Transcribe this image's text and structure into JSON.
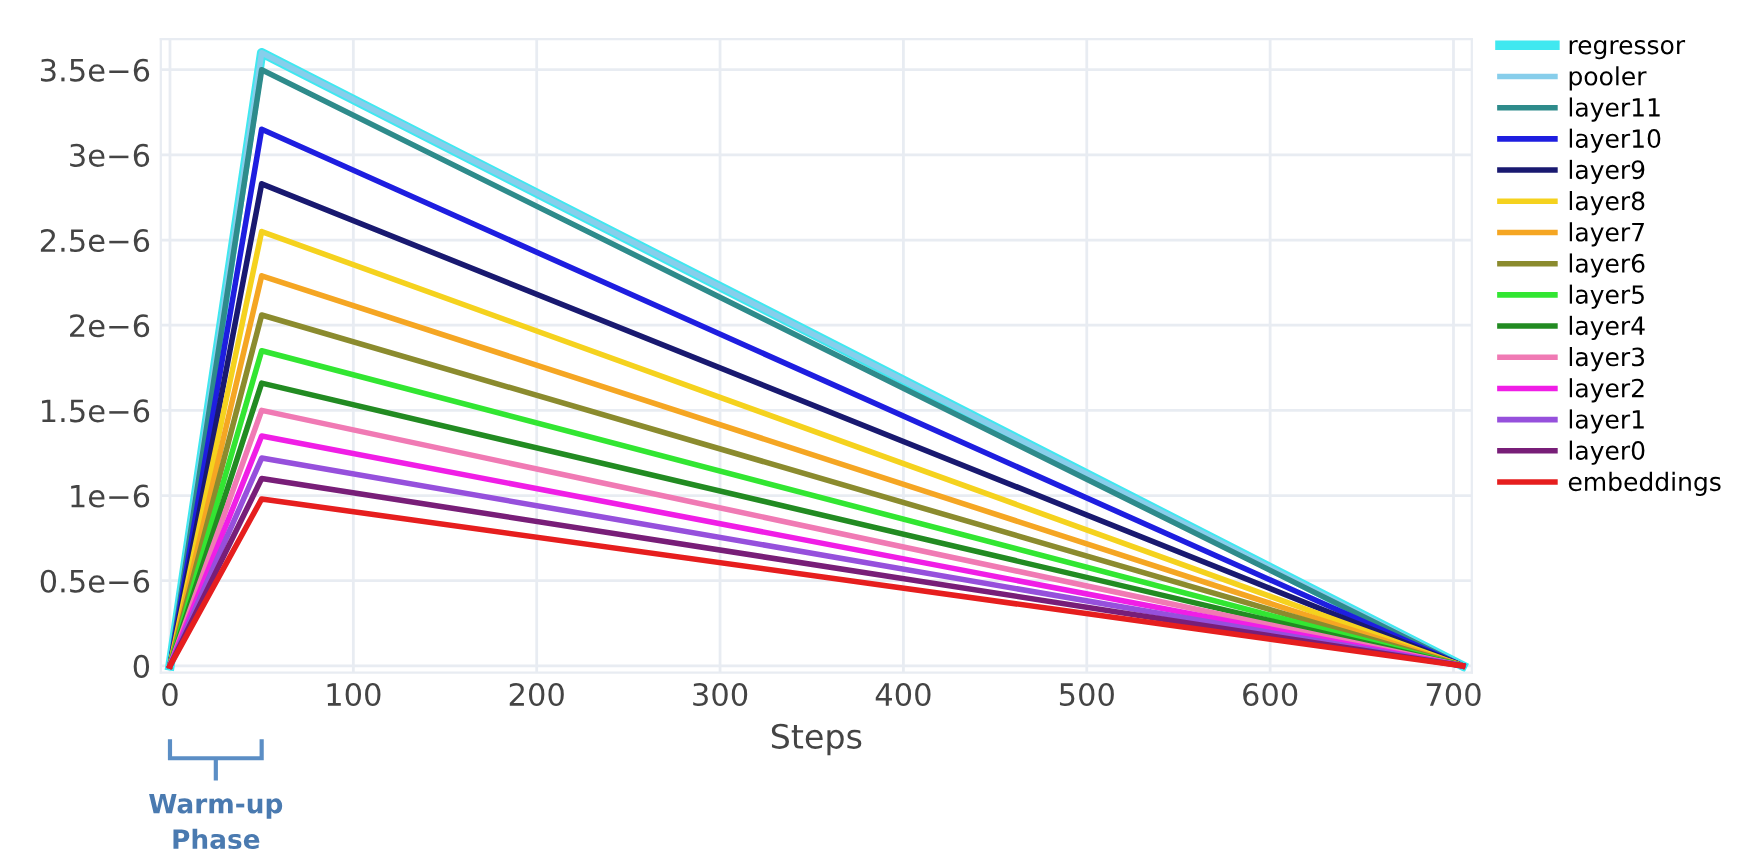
{
  "chart_data": {
    "type": "line",
    "xlabel": "Steps",
    "x": [
      0,
      50,
      705
    ],
    "series": [
      {
        "name": "regressor",
        "color": "#40e8f0",
        "values": [
          0,
          3.6e-06,
          0
        ]
      },
      {
        "name": "pooler",
        "color": "#87ceeb",
        "values": [
          0,
          3.6e-06,
          0
        ]
      },
      {
        "name": "layer11",
        "color": "#2e8b8b",
        "values": [
          0,
          3.5e-06,
          0
        ]
      },
      {
        "name": "layer10",
        "color": "#1e1ee0",
        "values": [
          0,
          3.15e-06,
          0
        ]
      },
      {
        "name": "layer9",
        "color": "#191970",
        "values": [
          0,
          2.83e-06,
          0
        ]
      },
      {
        "name": "layer8",
        "color": "#f5d21e",
        "values": [
          0,
          2.55e-06,
          0
        ]
      },
      {
        "name": "layer7",
        "color": "#f5a623",
        "values": [
          0,
          2.29e-06,
          0
        ]
      },
      {
        "name": "layer6",
        "color": "#8b8b2e",
        "values": [
          0,
          2.06e-06,
          0
        ]
      },
      {
        "name": "layer5",
        "color": "#32e632",
        "values": [
          0,
          1.85e-06,
          0
        ]
      },
      {
        "name": "layer4",
        "color": "#228b22",
        "values": [
          0,
          1.66e-06,
          0
        ]
      },
      {
        "name": "layer3",
        "color": "#f07ab4",
        "values": [
          0,
          1.5e-06,
          0
        ]
      },
      {
        "name": "layer2",
        "color": "#f01ee6",
        "values": [
          0,
          1.35e-06,
          0
        ]
      },
      {
        "name": "layer1",
        "color": "#9650dc",
        "values": [
          0,
          1.22e-06,
          0
        ]
      },
      {
        "name": "layer0",
        "color": "#781e78",
        "values": [
          0,
          1.1e-06,
          0
        ]
      },
      {
        "name": "embeddings",
        "color": "#e61e1e",
        "values": [
          0,
          9.8e-07,
          0
        ]
      }
    ],
    "xlim": [
      -5,
      710
    ],
    "xticks": [
      0,
      100,
      200,
      300,
      400,
      500,
      600,
      700
    ],
    "ylim": [
      -4e-08,
      3.68e-06
    ],
    "yticks": [
      0,
      {
        "value": 5e-07,
        "label": "0.5e−6"
      },
      {
        "value": 1e-06,
        "label": "1e−6"
      },
      {
        "value": 1.5e-06,
        "label": "1.5e−6"
      },
      {
        "value": 2e-06,
        "label": "2e−6"
      },
      {
        "value": 2.5e-06,
        "label": "2.5e−6"
      },
      {
        "value": 3e-06,
        "label": "3e−6"
      },
      {
        "value": 3.5e-06,
        "label": "3.5e−6"
      }
    ],
    "annotations": [
      "Warm-up\nPhase"
    ],
    "grid": true,
    "legend": "top right",
    "marker": "none",
    "line_style": "solid"
  }
}
